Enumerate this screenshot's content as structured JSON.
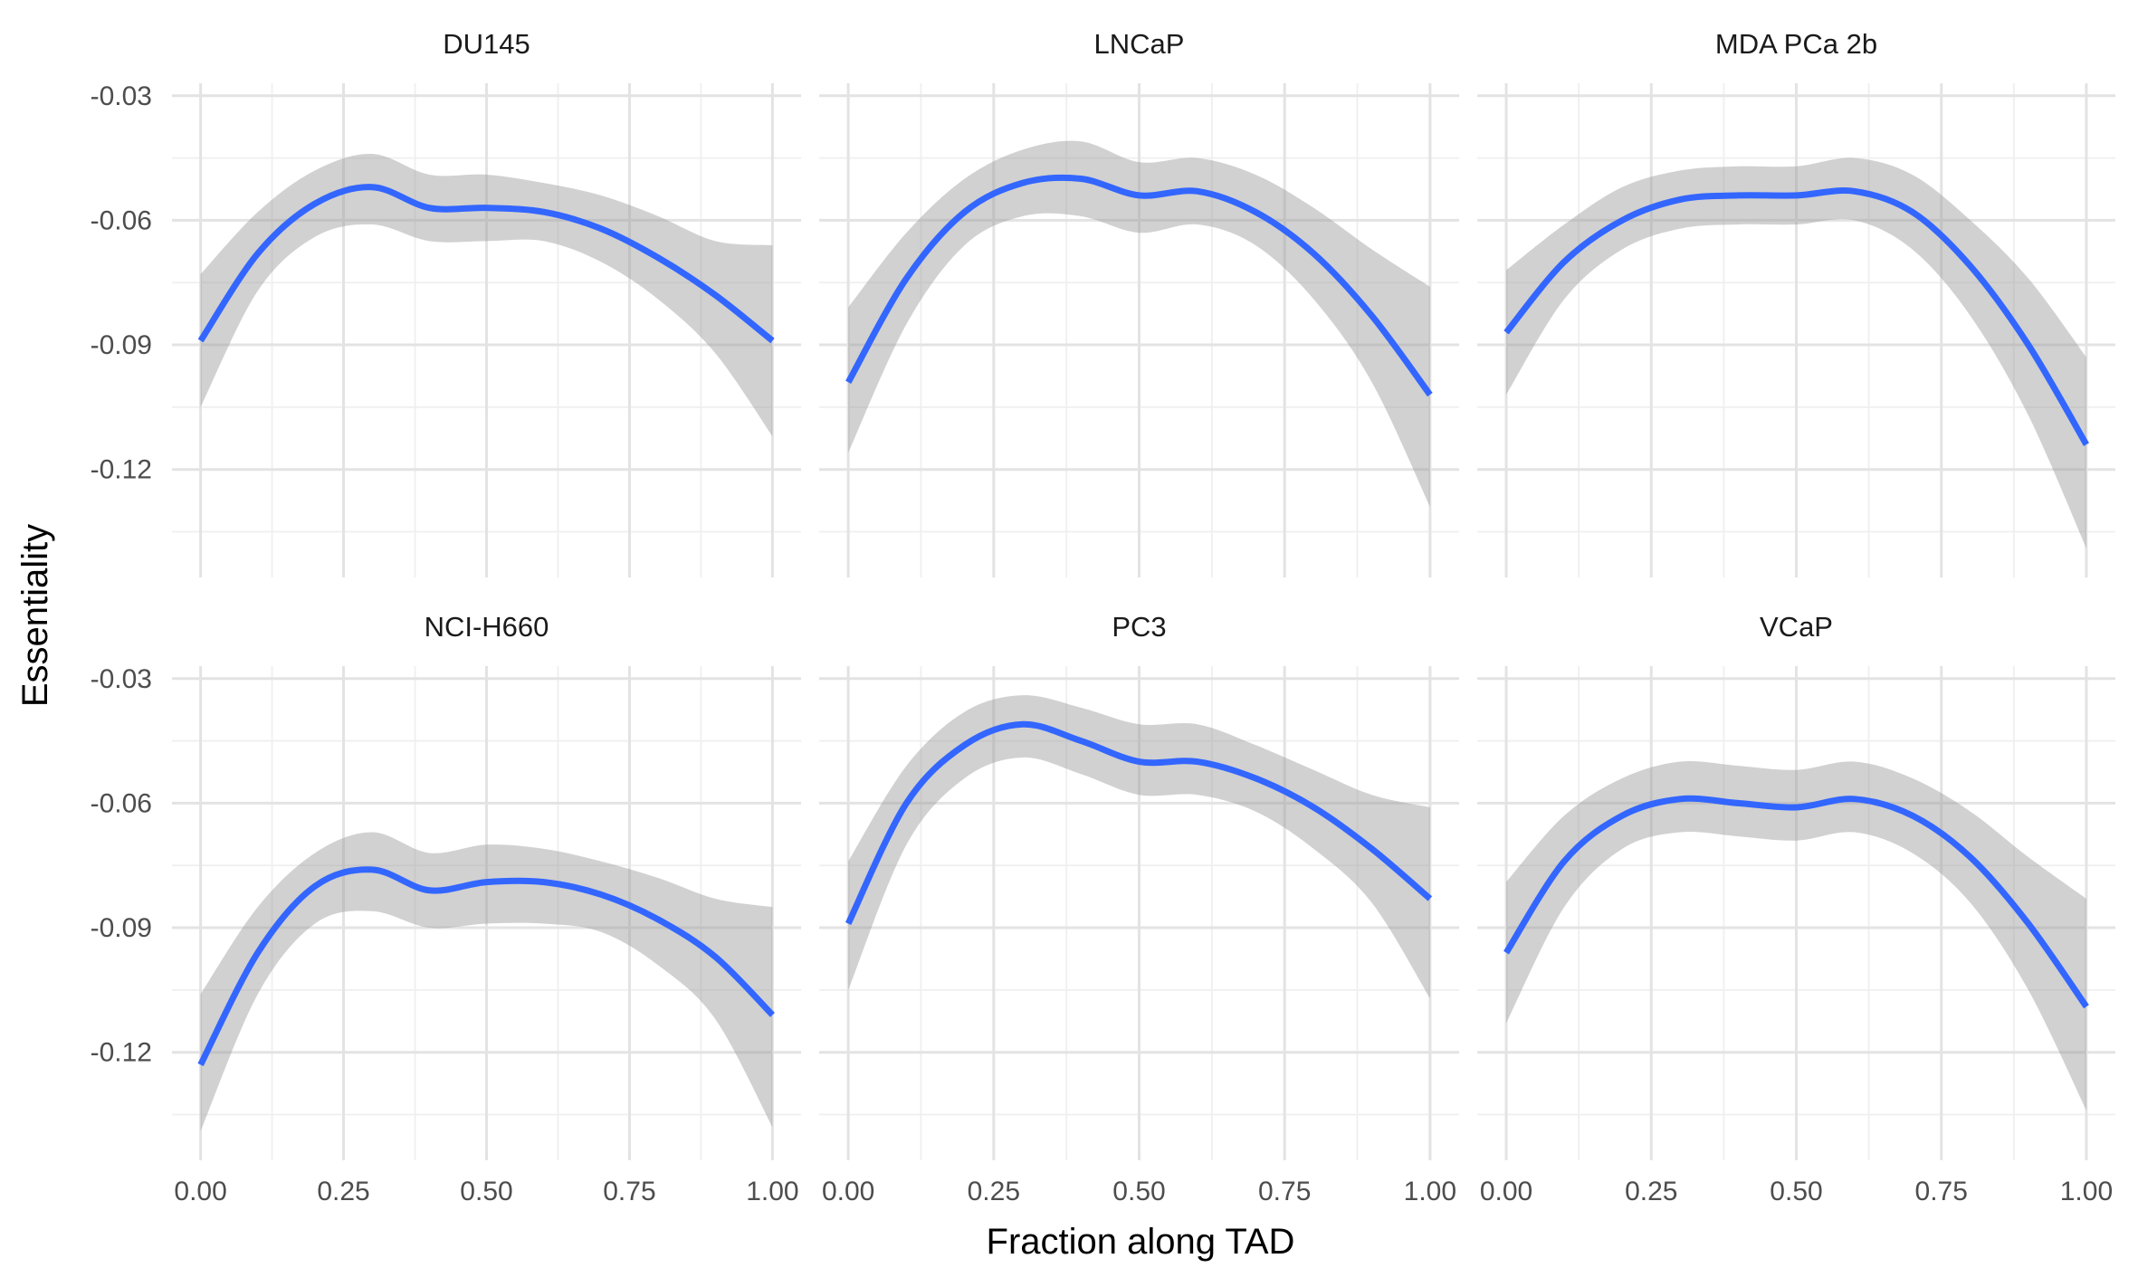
{
  "chart_data": {
    "type": "line",
    "xlabel": "Fraction along TAD",
    "ylabel": "Essentiality",
    "x_ticks": [
      "0.00",
      "0.25",
      "0.50",
      "0.75",
      "1.00"
    ],
    "y_ticks": [
      "-0.03",
      "-0.06",
      "-0.09",
      "-0.12"
    ],
    "x_tick_values": [
      0,
      0.25,
      0.5,
      0.75,
      1.0
    ],
    "y_tick_values": [
      -0.03,
      -0.06,
      -0.09,
      -0.12
    ],
    "xlim": [
      -0.05,
      1.05
    ],
    "ylim_top_row": [
      -0.146,
      -0.027
    ],
    "ylim_bottom_row": [
      -0.146,
      -0.027
    ],
    "grid": true,
    "facet_layout": "2 rows x 3 columns",
    "line_color": "#3366FF",
    "band_color": "#999999",
    "panels": [
      {
        "name": "DU145",
        "x": [
          0,
          0.1,
          0.2,
          0.3,
          0.4,
          0.5,
          0.6,
          0.7,
          0.8,
          0.9,
          1.0
        ],
        "y": [
          -0.089,
          -0.068,
          -0.056,
          -0.052,
          -0.057,
          -0.057,
          -0.058,
          -0.062,
          -0.069,
          -0.078,
          -0.089
        ],
        "ci_upper": [
          -0.073,
          -0.058,
          -0.048,
          -0.044,
          -0.049,
          -0.049,
          -0.051,
          -0.054,
          -0.059,
          -0.065,
          -0.066
        ],
        "ci_lower": [
          -0.105,
          -0.077,
          -0.064,
          -0.061,
          -0.065,
          -0.065,
          -0.065,
          -0.07,
          -0.079,
          -0.092,
          -0.112
        ]
      },
      {
        "name": "LNCaP",
        "x": [
          0,
          0.1,
          0.2,
          0.3,
          0.4,
          0.5,
          0.6,
          0.7,
          0.8,
          0.9,
          1.0
        ],
        "y": [
          -0.099,
          -0.074,
          -0.058,
          -0.051,
          -0.05,
          -0.054,
          -0.053,
          -0.058,
          -0.068,
          -0.083,
          -0.102
        ],
        "ci_upper": [
          -0.081,
          -0.063,
          -0.05,
          -0.043,
          -0.041,
          -0.046,
          -0.045,
          -0.049,
          -0.057,
          -0.067,
          -0.076
        ],
        "ci_lower": [
          -0.116,
          -0.085,
          -0.066,
          -0.059,
          -0.059,
          -0.063,
          -0.061,
          -0.066,
          -0.079,
          -0.099,
          -0.129
        ]
      },
      {
        "name": "MDA PCa 2b",
        "x": [
          0,
          0.1,
          0.2,
          0.3,
          0.4,
          0.5,
          0.6,
          0.7,
          0.8,
          0.9,
          1.0
        ],
        "y": [
          -0.087,
          -0.07,
          -0.06,
          -0.055,
          -0.054,
          -0.054,
          -0.053,
          -0.058,
          -0.071,
          -0.09,
          -0.114
        ],
        "ci_upper": [
          -0.072,
          -0.061,
          -0.052,
          -0.048,
          -0.047,
          -0.047,
          -0.045,
          -0.049,
          -0.06,
          -0.074,
          -0.093
        ],
        "ci_lower": [
          -0.102,
          -0.079,
          -0.067,
          -0.062,
          -0.061,
          -0.061,
          -0.06,
          -0.067,
          -0.083,
          -0.107,
          -0.139
        ]
      },
      {
        "name": "NCI-H660",
        "x": [
          0,
          0.1,
          0.2,
          0.3,
          0.4,
          0.5,
          0.6,
          0.7,
          0.8,
          0.9,
          1.0
        ],
        "y": [
          -0.123,
          -0.096,
          -0.08,
          -0.076,
          -0.081,
          -0.079,
          -0.079,
          -0.082,
          -0.088,
          -0.097,
          -0.111
        ],
        "ci_upper": [
          -0.106,
          -0.085,
          -0.072,
          -0.067,
          -0.072,
          -0.07,
          -0.071,
          -0.074,
          -0.078,
          -0.083,
          -0.085
        ],
        "ci_lower": [
          -0.139,
          -0.106,
          -0.089,
          -0.086,
          -0.09,
          -0.089,
          -0.089,
          -0.091,
          -0.099,
          -0.112,
          -0.138
        ]
      },
      {
        "name": "PC3",
        "x": [
          0,
          0.1,
          0.2,
          0.3,
          0.4,
          0.5,
          0.6,
          0.7,
          0.8,
          0.9,
          1.0
        ],
        "y": [
          -0.089,
          -0.06,
          -0.046,
          -0.041,
          -0.045,
          -0.05,
          -0.05,
          -0.054,
          -0.061,
          -0.071,
          -0.083
        ],
        "ci_upper": [
          -0.074,
          -0.051,
          -0.038,
          -0.034,
          -0.037,
          -0.041,
          -0.041,
          -0.046,
          -0.052,
          -0.058,
          -0.061
        ],
        "ci_lower": [
          -0.105,
          -0.07,
          -0.054,
          -0.049,
          -0.053,
          -0.058,
          -0.058,
          -0.062,
          -0.071,
          -0.084,
          -0.107
        ]
      },
      {
        "name": "VCaP",
        "x": [
          0,
          0.1,
          0.2,
          0.3,
          0.4,
          0.5,
          0.6,
          0.7,
          0.8,
          0.9,
          1.0
        ],
        "y": [
          -0.096,
          -0.074,
          -0.063,
          -0.059,
          -0.06,
          -0.061,
          -0.059,
          -0.063,
          -0.073,
          -0.089,
          -0.109
        ],
        "ci_upper": [
          -0.079,
          -0.063,
          -0.054,
          -0.05,
          -0.051,
          -0.052,
          -0.05,
          -0.054,
          -0.062,
          -0.073,
          -0.083
        ],
        "ci_lower": [
          -0.113,
          -0.085,
          -0.071,
          -0.067,
          -0.068,
          -0.069,
          -0.067,
          -0.072,
          -0.084,
          -0.105,
          -0.134
        ]
      }
    ]
  }
}
